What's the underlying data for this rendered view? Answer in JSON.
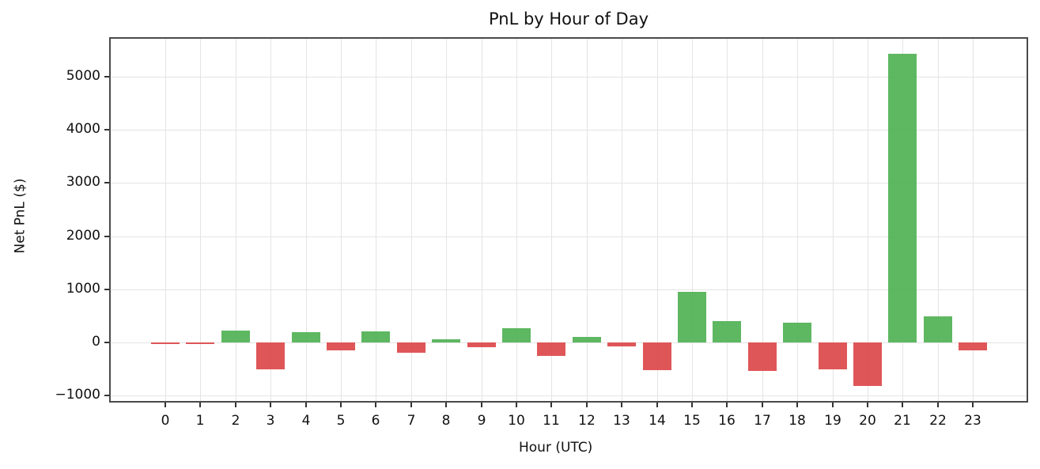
{
  "chart_data": {
    "type": "bar",
    "title": "PnL by Hour of Day",
    "xlabel": "Hour (UTC)",
    "ylabel": "Net PnL ($)",
    "categories": [
      "0",
      "1",
      "2",
      "3",
      "4",
      "5",
      "6",
      "7",
      "8",
      "9",
      "10",
      "11",
      "12",
      "13",
      "14",
      "15",
      "16",
      "17",
      "18",
      "19",
      "20",
      "21",
      "22",
      "23"
    ],
    "values": [
      -30,
      -30,
      220,
      -505,
      190,
      -150,
      205,
      -195,
      55,
      -90,
      265,
      -250,
      100,
      -75,
      -520,
      948,
      397,
      -535,
      368,
      -505,
      -818,
      5432,
      487,
      -150
    ],
    "yticks": [
      -1000,
      0,
      1000,
      2000,
      3000,
      4000,
      5000
    ],
    "ytick_labels": [
      "−1000",
      "0",
      "1000",
      "2000",
      "3000",
      "4000",
      "5000"
    ],
    "ylim": [
      -1130,
      5750
    ],
    "grid": true,
    "legend": null,
    "colors": {
      "positive": "#4caf50",
      "negative": "#dc4446",
      "axis": "#4a4a4a",
      "grid": "#e4e4e4"
    }
  }
}
